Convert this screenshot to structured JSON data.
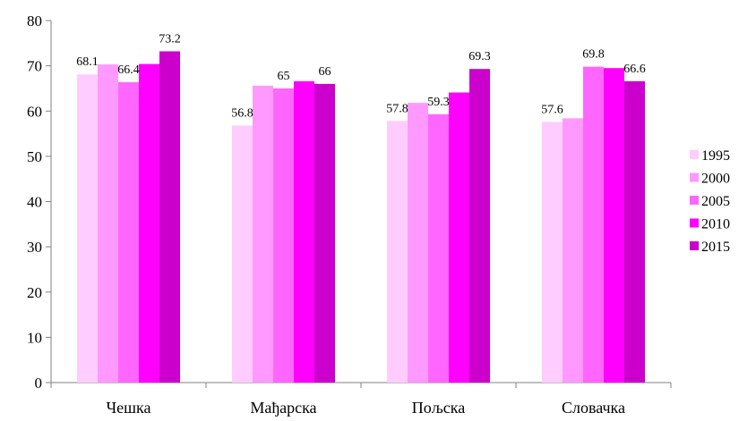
{
  "chart_data": {
    "type": "bar",
    "title": "",
    "xlabel": "",
    "ylabel": "",
    "ylim": [
      0,
      80
    ],
    "yticks": [
      "0",
      "10",
      "20",
      "30",
      "40",
      "50",
      "60",
      "70",
      "80"
    ],
    "grid": false,
    "legend_position": "right",
    "categories": [
      "Чешка",
      "Мађарска",
      "Пољска",
      "Словачка"
    ],
    "series": [
      {
        "name": "1995",
        "color": "#ffccff",
        "values": [
          68.1,
          56.8,
          57.8,
          57.6
        ],
        "labels": [
          "68.1",
          "56.8",
          "57.8",
          "57.6"
        ]
      },
      {
        "name": "2000",
        "color": "#ff99ff",
        "values": [
          70.3,
          65.6,
          61.8,
          58.4
        ],
        "labels": [
          "",
          "",
          "",
          ""
        ]
      },
      {
        "name": "2005",
        "color": "#ff66ff",
        "values": [
          66.4,
          65.0,
          59.3,
          69.8
        ],
        "labels": [
          "66.4",
          "65",
          "59.3",
          "69.8"
        ]
      },
      {
        "name": "2010",
        "color": "#ff00ff",
        "values": [
          70.4,
          66.6,
          64.1,
          69.5
        ],
        "labels": [
          "",
          "",
          "",
          ""
        ]
      },
      {
        "name": "2015",
        "color": "#cc00cc",
        "values": [
          73.2,
          66.0,
          69.3,
          66.6
        ],
        "labels": [
          "73.2",
          "66",
          "69.3",
          "66.6"
        ]
      }
    ]
  }
}
